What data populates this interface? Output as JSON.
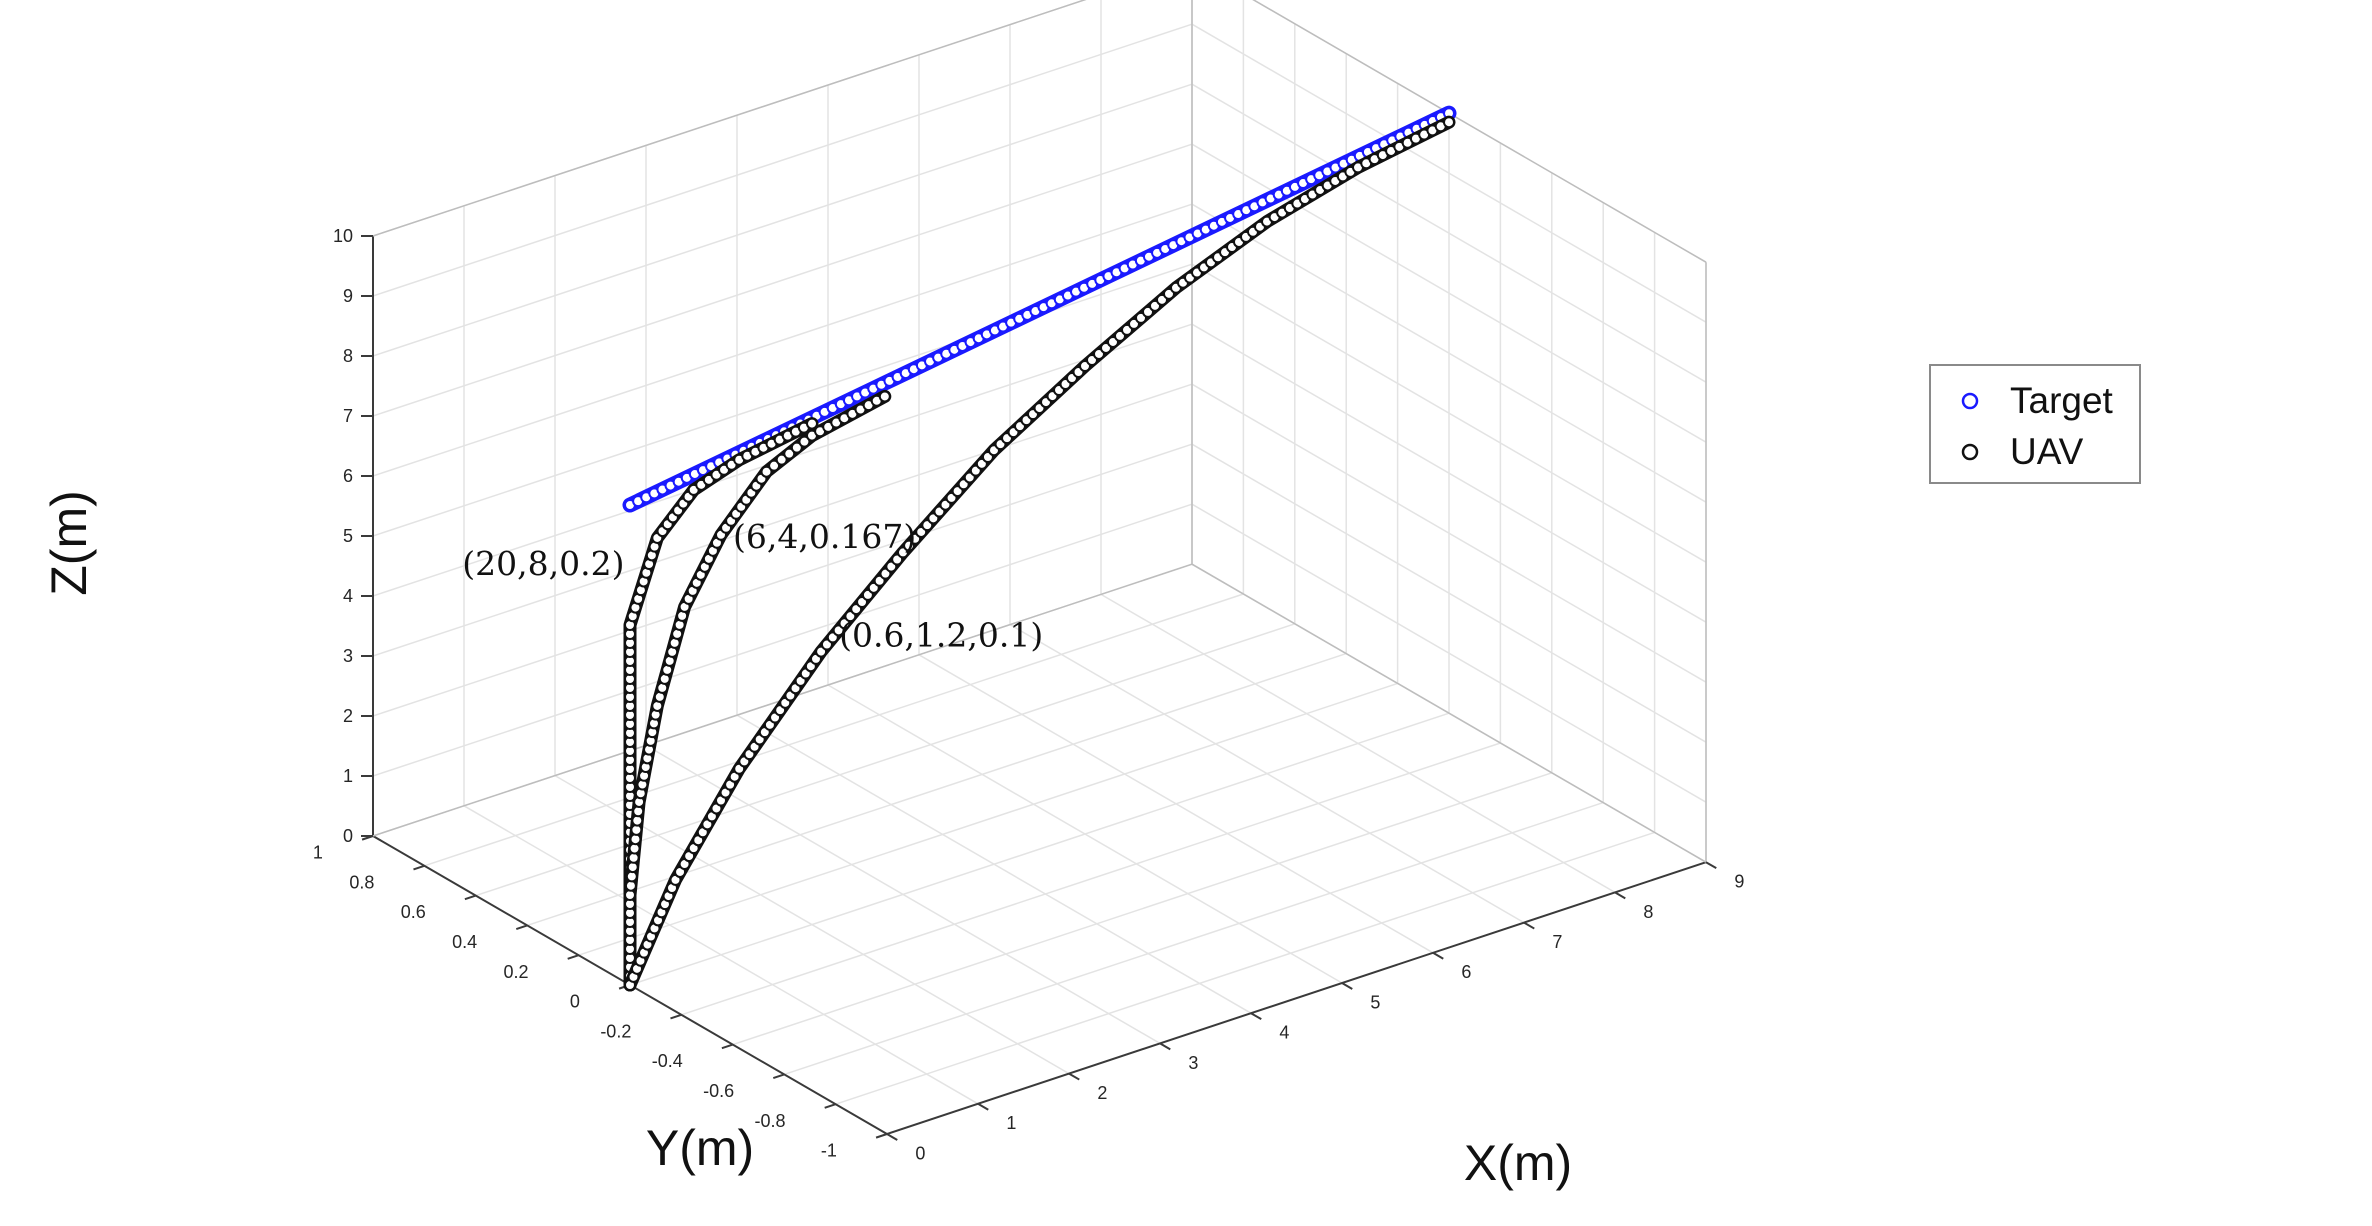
{
  "chart_data": {
    "type": "line3d",
    "title": "",
    "xlabel": "X(m)",
    "ylabel": "Y(m)",
    "zlabel": "Z(m)",
    "xlim": [
      0,
      9
    ],
    "ylim": [
      -1,
      1
    ],
    "zlim": [
      0,
      10
    ],
    "x_ticks": [
      "0",
      "1",
      "2",
      "3",
      "4",
      "5",
      "6",
      "7",
      "8",
      "9"
    ],
    "y_ticks": [
      "-1",
      "-0.8",
      "-0.6",
      "-0.4",
      "-0.2",
      "0",
      "0.2",
      "0.4",
      "0.6",
      "0.8",
      "1"
    ],
    "z_ticks": [
      "0",
      "1",
      "2",
      "3",
      "4",
      "5",
      "6",
      "7",
      "8",
      "9",
      "10"
    ],
    "grid": true,
    "legend": {
      "position": "right",
      "entries": [
        {
          "label": "Target",
          "color": "#1a1aff",
          "marker": "circle"
        },
        {
          "label": "UAV",
          "color": "#111111",
          "marker": "circle"
        }
      ]
    },
    "series": [
      {
        "name": "Target",
        "color": "#1a1aff",
        "points": [
          [
            0.0,
            0.0,
            8.0
          ],
          [
            9.0,
            0.0,
            10.0
          ]
        ]
      },
      {
        "name": "UAV",
        "label": "(20,8,0.2)",
        "color": "#111111",
        "points": [
          [
            0.0,
            0.0,
            0.0
          ],
          [
            0.0,
            0.0,
            1.5
          ],
          [
            0.0,
            0.0,
            3.0
          ],
          [
            0.0,
            0.0,
            4.5
          ],
          [
            0.0,
            0.0,
            6.0
          ],
          [
            0.3,
            0.0,
            7.3
          ],
          [
            0.7,
            0.0,
            7.9
          ],
          [
            1.2,
            0.0,
            8.15
          ],
          [
            2.0,
            0.0,
            8.35
          ]
        ]
      },
      {
        "name": "UAV",
        "label": "(6,4,0.167)",
        "color": "#111111",
        "points": [
          [
            0.0,
            0.0,
            0.0
          ],
          [
            0.0,
            0.0,
            1.5
          ],
          [
            0.1,
            0.0,
            3.0
          ],
          [
            0.3,
            0.0,
            4.5
          ],
          [
            0.6,
            0.0,
            6.0
          ],
          [
            1.0,
            0.0,
            7.0
          ],
          [
            1.5,
            0.0,
            7.8
          ],
          [
            2.0,
            0.0,
            8.15
          ],
          [
            2.8,
            0.0,
            8.4
          ]
        ]
      },
      {
        "name": "UAV",
        "label": "(0.6,1.2,0.1)",
        "color": "#111111",
        "points": [
          [
            0.0,
            0.0,
            0.0
          ],
          [
            0.5,
            0.0,
            1.5
          ],
          [
            1.2,
            0.0,
            3.0
          ],
          [
            2.1,
            0.0,
            4.5
          ],
          [
            3.0,
            0.0,
            5.7
          ],
          [
            4.0,
            0.0,
            6.9
          ],
          [
            5.0,
            0.0,
            7.8
          ],
          [
            6.0,
            0.0,
            8.6
          ],
          [
            7.0,
            0.0,
            9.2
          ],
          [
            8.0,
            0.0,
            9.6
          ],
          [
            9.0,
            0.0,
            9.85
          ]
        ]
      }
    ]
  }
}
